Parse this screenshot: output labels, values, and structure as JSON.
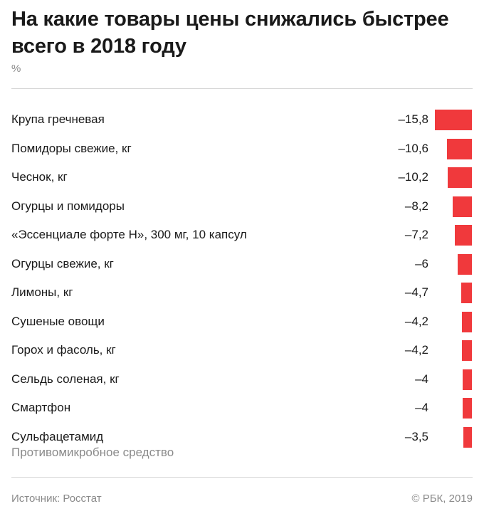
{
  "header": {
    "title": "На какие товары цены снижались быстрее всего в 2018 году",
    "unit": "%"
  },
  "footer": {
    "source": "Источник: Росстат",
    "copyright": "© РБК, 2019"
  },
  "colors": {
    "bar": "#f0393c",
    "muted": "#8a8a8a"
  },
  "chart_data": {
    "type": "bar",
    "orientation": "horizontal",
    "title": "На какие товары цены снижались быстрее всего в 2018 году",
    "ylabel": "%",
    "categories": [
      "Крупа гречневая",
      "Помидоры свежие, кг",
      "Чеснок, кг",
      "Огурцы и помидоры",
      "«Эссенциале форте Н», 300 мг, 10 капсул",
      "Огурцы свежие, кг",
      "Лимоны, кг",
      "Сушеные овощи",
      "Горох и фасоль, кг",
      "Сельдь соленая, кг",
      "Смартфон",
      "Сульфацетамид"
    ],
    "sublabels": [
      "",
      "",
      "",
      "",
      "",
      "",
      "",
      "",
      "",
      "",
      "",
      "Противомикробное средство"
    ],
    "values": [
      -15.8,
      -10.6,
      -10.2,
      -8.2,
      -7.2,
      -6,
      -4.7,
      -4.2,
      -4.2,
      -4,
      -4,
      -3.5
    ],
    "value_labels": [
      "–15,8",
      "–10,6",
      "–10,2",
      "–8,2",
      "–7,2",
      "–6",
      "–4,7",
      "–4,2",
      "–4,2",
      "–4",
      "–4",
      "–3,5"
    ]
  }
}
